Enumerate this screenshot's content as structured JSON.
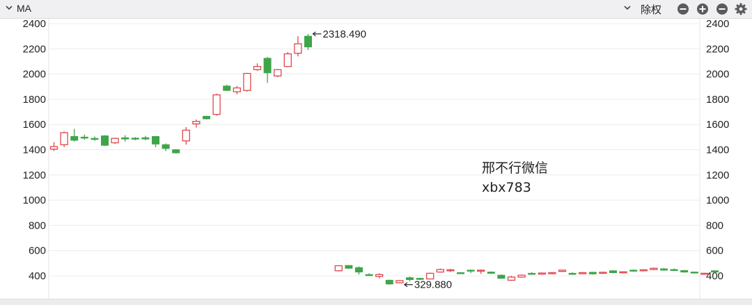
{
  "toolbar": {
    "indicator_label": "MA",
    "adjust_label": "除权",
    "icons": [
      "chevron-down-icon",
      "zoom-out-icon",
      "zoom-in-icon",
      "minus-icon",
      "gear-icon"
    ]
  },
  "watermark": {
    "line1": "邢不行微信",
    "line2": "xbx783"
  },
  "colors": {
    "up": "#e0464b",
    "down": "#3ea54a",
    "grid": "#ececec",
    "text": "#222222"
  },
  "chart_data": {
    "type": "candlestick",
    "title": "",
    "xlabel": "",
    "ylabel": "",
    "ylim": [
      300,
      2400
    ],
    "yticks": [
      400,
      600,
      800,
      1000,
      1200,
      1400,
      1600,
      1800,
      2000,
      2200,
      2400
    ],
    "y_axis_both_sides": true,
    "grid": "horizontal",
    "annotations": [
      {
        "text": "2318.490",
        "index": 25,
        "value": 2318.49
      },
      {
        "text": "329.880",
        "index": 34,
        "value": 329.88
      }
    ],
    "candles": [
      {
        "o": 1405,
        "h": 1460,
        "l": 1390,
        "c": 1425
      },
      {
        "o": 1440,
        "h": 1545,
        "l": 1420,
        "c": 1535
      },
      {
        "o": 1505,
        "h": 1565,
        "l": 1465,
        "c": 1475
      },
      {
        "o": 1500,
        "h": 1520,
        "l": 1480,
        "c": 1495
      },
      {
        "o": 1490,
        "h": 1505,
        "l": 1470,
        "c": 1485
      },
      {
        "o": 1510,
        "h": 1515,
        "l": 1430,
        "c": 1435
      },
      {
        "o": 1455,
        "h": 1495,
        "l": 1445,
        "c": 1490
      },
      {
        "o": 1495,
        "h": 1515,
        "l": 1465,
        "c": 1485
      },
      {
        "o": 1492,
        "h": 1500,
        "l": 1475,
        "c": 1485
      },
      {
        "o": 1495,
        "h": 1510,
        "l": 1475,
        "c": 1485
      },
      {
        "o": 1505,
        "h": 1510,
        "l": 1420,
        "c": 1445
      },
      {
        "o": 1440,
        "h": 1450,
        "l": 1390,
        "c": 1410
      },
      {
        "o": 1400,
        "h": 1405,
        "l": 1370,
        "c": 1375
      },
      {
        "o": 1470,
        "h": 1580,
        "l": 1440,
        "c": 1555
      },
      {
        "o": 1605,
        "h": 1640,
        "l": 1575,
        "c": 1625
      },
      {
        "o": 1665,
        "h": 1670,
        "l": 1640,
        "c": 1645
      },
      {
        "o": 1680,
        "h": 1845,
        "l": 1670,
        "c": 1835
      },
      {
        "o": 1905,
        "h": 1915,
        "l": 1865,
        "c": 1870
      },
      {
        "o": 1860,
        "h": 1905,
        "l": 1840,
        "c": 1890
      },
      {
        "o": 1870,
        "h": 2010,
        "l": 1860,
        "c": 2005
      },
      {
        "o": 2035,
        "h": 2085,
        "l": 2025,
        "c": 2060
      },
      {
        "o": 2125,
        "h": 2135,
        "l": 1930,
        "c": 2010
      },
      {
        "o": 1985,
        "h": 2040,
        "l": 1975,
        "c": 2035
      },
      {
        "o": 2060,
        "h": 2175,
        "l": 2055,
        "c": 2160
      },
      {
        "o": 2165,
        "h": 2300,
        "l": 2140,
        "c": 2240
      },
      {
        "o": 2300,
        "h": 2318.49,
        "l": 2190,
        "c": 2215
      },
      null,
      null,
      {
        "o": 440,
        "h": 480,
        "l": 435,
        "c": 480
      },
      {
        "o": 482,
        "h": 485,
        "l": 455,
        "c": 460
      },
      {
        "o": 465,
        "h": 475,
        "l": 410,
        "c": 430
      },
      {
        "o": 410,
        "h": 420,
        "l": 398,
        "c": 405
      },
      {
        "o": 395,
        "h": 420,
        "l": 380,
        "c": 410
      },
      {
        "o": 365,
        "h": 370,
        "l": 329.88,
        "c": 335
      },
      {
        "o": 345,
        "h": 365,
        "l": 340,
        "c": 362
      },
      {
        "o": 385,
        "h": 395,
        "l": 355,
        "c": 370
      },
      {
        "o": 380,
        "h": 385,
        "l": 365,
        "c": 372
      },
      {
        "o": 375,
        "h": 425,
        "l": 372,
        "c": 420
      },
      {
        "o": 430,
        "h": 458,
        "l": 425,
        "c": 450
      },
      {
        "o": 440,
        "h": 455,
        "l": 430,
        "c": 448
      },
      {
        "o": 425,
        "h": 430,
        "l": 418,
        "c": 420
      },
      {
        "o": 445,
        "h": 450,
        "l": 420,
        "c": 440
      },
      {
        "o": 445,
        "h": 450,
        "l": 415,
        "c": 445
      },
      {
        "o": 430,
        "h": 435,
        "l": 415,
        "c": 420
      },
      {
        "o": 405,
        "h": 410,
        "l": 378,
        "c": 380
      },
      {
        "o": 365,
        "h": 400,
        "l": 360,
        "c": 390
      },
      {
        "o": 390,
        "h": 410,
        "l": 385,
        "c": 405
      },
      {
        "o": 420,
        "h": 428,
        "l": 410,
        "c": 418
      },
      {
        "o": 418,
        "h": 426,
        "l": 410,
        "c": 422
      },
      {
        "o": 420,
        "h": 430,
        "l": 412,
        "c": 425
      },
      {
        "o": 435,
        "h": 448,
        "l": 430,
        "c": 445
      },
      {
        "o": 420,
        "h": 428,
        "l": 408,
        "c": 415
      },
      {
        "o": 422,
        "h": 430,
        "l": 415,
        "c": 425
      },
      {
        "o": 428,
        "h": 432,
        "l": 410,
        "c": 415
      },
      {
        "o": 420,
        "h": 432,
        "l": 415,
        "c": 428
      },
      {
        "o": 440,
        "h": 445,
        "l": 420,
        "c": 425
      },
      {
        "o": 428,
        "h": 436,
        "l": 420,
        "c": 432
      },
      {
        "o": 445,
        "h": 450,
        "l": 432,
        "c": 438
      },
      {
        "o": 440,
        "h": 452,
        "l": 435,
        "c": 448
      },
      {
        "o": 450,
        "h": 465,
        "l": 445,
        "c": 460
      },
      {
        "o": 455,
        "h": 462,
        "l": 440,
        "c": 445
      },
      {
        "o": 450,
        "h": 458,
        "l": 438,
        "c": 442
      },
      {
        "o": 442,
        "h": 446,
        "l": 425,
        "c": 430
      },
      {
        "o": 430,
        "h": 434,
        "l": 418,
        "c": 422
      },
      {
        "o": 418,
        "h": 424,
        "l": 412,
        "c": 420
      },
      {
        "o": 440,
        "h": 445,
        "l": 425,
        "c": 430
      }
    ]
  }
}
